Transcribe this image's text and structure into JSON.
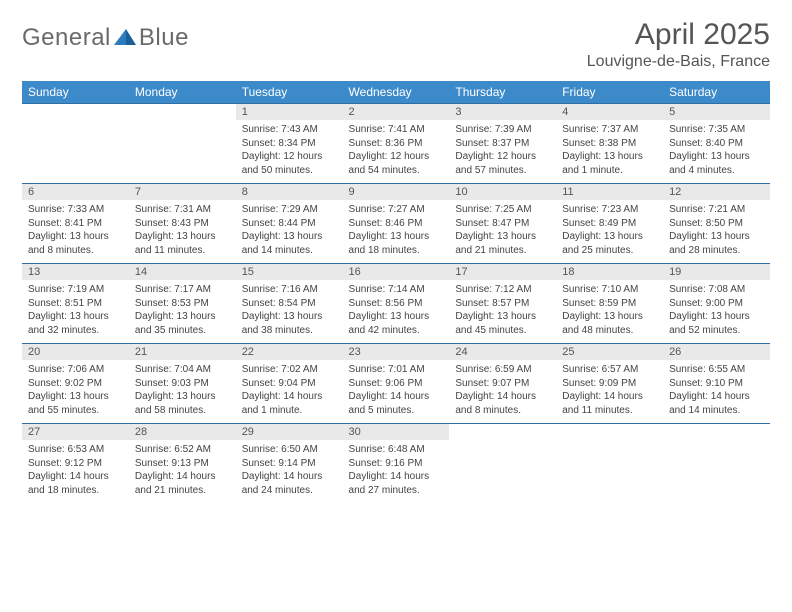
{
  "logo": {
    "word1": "General",
    "word2": "Blue"
  },
  "title": "April 2025",
  "location": "Louvigne-de-Bais, France",
  "colors": {
    "header_bg": "#3c8ac9",
    "header_text": "#ffffff",
    "daynum_bg": "#e9e9e9",
    "border": "#2d6ea5",
    "logo_gray": "#6a6a6a",
    "logo_blue": "#2d7bbf"
  },
  "layout": {
    "columns": 7,
    "rows": 5,
    "first_day_column": 2
  },
  "day_headers": [
    "Sunday",
    "Monday",
    "Tuesday",
    "Wednesday",
    "Thursday",
    "Friday",
    "Saturday"
  ],
  "days": [
    {
      "n": "1",
      "sunrise": "7:43 AM",
      "sunset": "8:34 PM",
      "daylight": "12 hours and 50 minutes."
    },
    {
      "n": "2",
      "sunrise": "7:41 AM",
      "sunset": "8:36 PM",
      "daylight": "12 hours and 54 minutes."
    },
    {
      "n": "3",
      "sunrise": "7:39 AM",
      "sunset": "8:37 PM",
      "daylight": "12 hours and 57 minutes."
    },
    {
      "n": "4",
      "sunrise": "7:37 AM",
      "sunset": "8:38 PM",
      "daylight": "13 hours and 1 minute."
    },
    {
      "n": "5",
      "sunrise": "7:35 AM",
      "sunset": "8:40 PM",
      "daylight": "13 hours and 4 minutes."
    },
    {
      "n": "6",
      "sunrise": "7:33 AM",
      "sunset": "8:41 PM",
      "daylight": "13 hours and 8 minutes."
    },
    {
      "n": "7",
      "sunrise": "7:31 AM",
      "sunset": "8:43 PM",
      "daylight": "13 hours and 11 minutes."
    },
    {
      "n": "8",
      "sunrise": "7:29 AM",
      "sunset": "8:44 PM",
      "daylight": "13 hours and 14 minutes."
    },
    {
      "n": "9",
      "sunrise": "7:27 AM",
      "sunset": "8:46 PM",
      "daylight": "13 hours and 18 minutes."
    },
    {
      "n": "10",
      "sunrise": "7:25 AM",
      "sunset": "8:47 PM",
      "daylight": "13 hours and 21 minutes."
    },
    {
      "n": "11",
      "sunrise": "7:23 AM",
      "sunset": "8:49 PM",
      "daylight": "13 hours and 25 minutes."
    },
    {
      "n": "12",
      "sunrise": "7:21 AM",
      "sunset": "8:50 PM",
      "daylight": "13 hours and 28 minutes."
    },
    {
      "n": "13",
      "sunrise": "7:19 AM",
      "sunset": "8:51 PM",
      "daylight": "13 hours and 32 minutes."
    },
    {
      "n": "14",
      "sunrise": "7:17 AM",
      "sunset": "8:53 PM",
      "daylight": "13 hours and 35 minutes."
    },
    {
      "n": "15",
      "sunrise": "7:16 AM",
      "sunset": "8:54 PM",
      "daylight": "13 hours and 38 minutes."
    },
    {
      "n": "16",
      "sunrise": "7:14 AM",
      "sunset": "8:56 PM",
      "daylight": "13 hours and 42 minutes."
    },
    {
      "n": "17",
      "sunrise": "7:12 AM",
      "sunset": "8:57 PM",
      "daylight": "13 hours and 45 minutes."
    },
    {
      "n": "18",
      "sunrise": "7:10 AM",
      "sunset": "8:59 PM",
      "daylight": "13 hours and 48 minutes."
    },
    {
      "n": "19",
      "sunrise": "7:08 AM",
      "sunset": "9:00 PM",
      "daylight": "13 hours and 52 minutes."
    },
    {
      "n": "20",
      "sunrise": "7:06 AM",
      "sunset": "9:02 PM",
      "daylight": "13 hours and 55 minutes."
    },
    {
      "n": "21",
      "sunrise": "7:04 AM",
      "sunset": "9:03 PM",
      "daylight": "13 hours and 58 minutes."
    },
    {
      "n": "22",
      "sunrise": "7:02 AM",
      "sunset": "9:04 PM",
      "daylight": "14 hours and 1 minute."
    },
    {
      "n": "23",
      "sunrise": "7:01 AM",
      "sunset": "9:06 PM",
      "daylight": "14 hours and 5 minutes."
    },
    {
      "n": "24",
      "sunrise": "6:59 AM",
      "sunset": "9:07 PM",
      "daylight": "14 hours and 8 minutes."
    },
    {
      "n": "25",
      "sunrise": "6:57 AM",
      "sunset": "9:09 PM",
      "daylight": "14 hours and 11 minutes."
    },
    {
      "n": "26",
      "sunrise": "6:55 AM",
      "sunset": "9:10 PM",
      "daylight": "14 hours and 14 minutes."
    },
    {
      "n": "27",
      "sunrise": "6:53 AM",
      "sunset": "9:12 PM",
      "daylight": "14 hours and 18 minutes."
    },
    {
      "n": "28",
      "sunrise": "6:52 AM",
      "sunset": "9:13 PM",
      "daylight": "14 hours and 21 minutes."
    },
    {
      "n": "29",
      "sunrise": "6:50 AM",
      "sunset": "9:14 PM",
      "daylight": "14 hours and 24 minutes."
    },
    {
      "n": "30",
      "sunrise": "6:48 AM",
      "sunset": "9:16 PM",
      "daylight": "14 hours and 27 minutes."
    }
  ],
  "labels": {
    "sunrise": "Sunrise: ",
    "sunset": "Sunset: ",
    "daylight": "Daylight: "
  }
}
